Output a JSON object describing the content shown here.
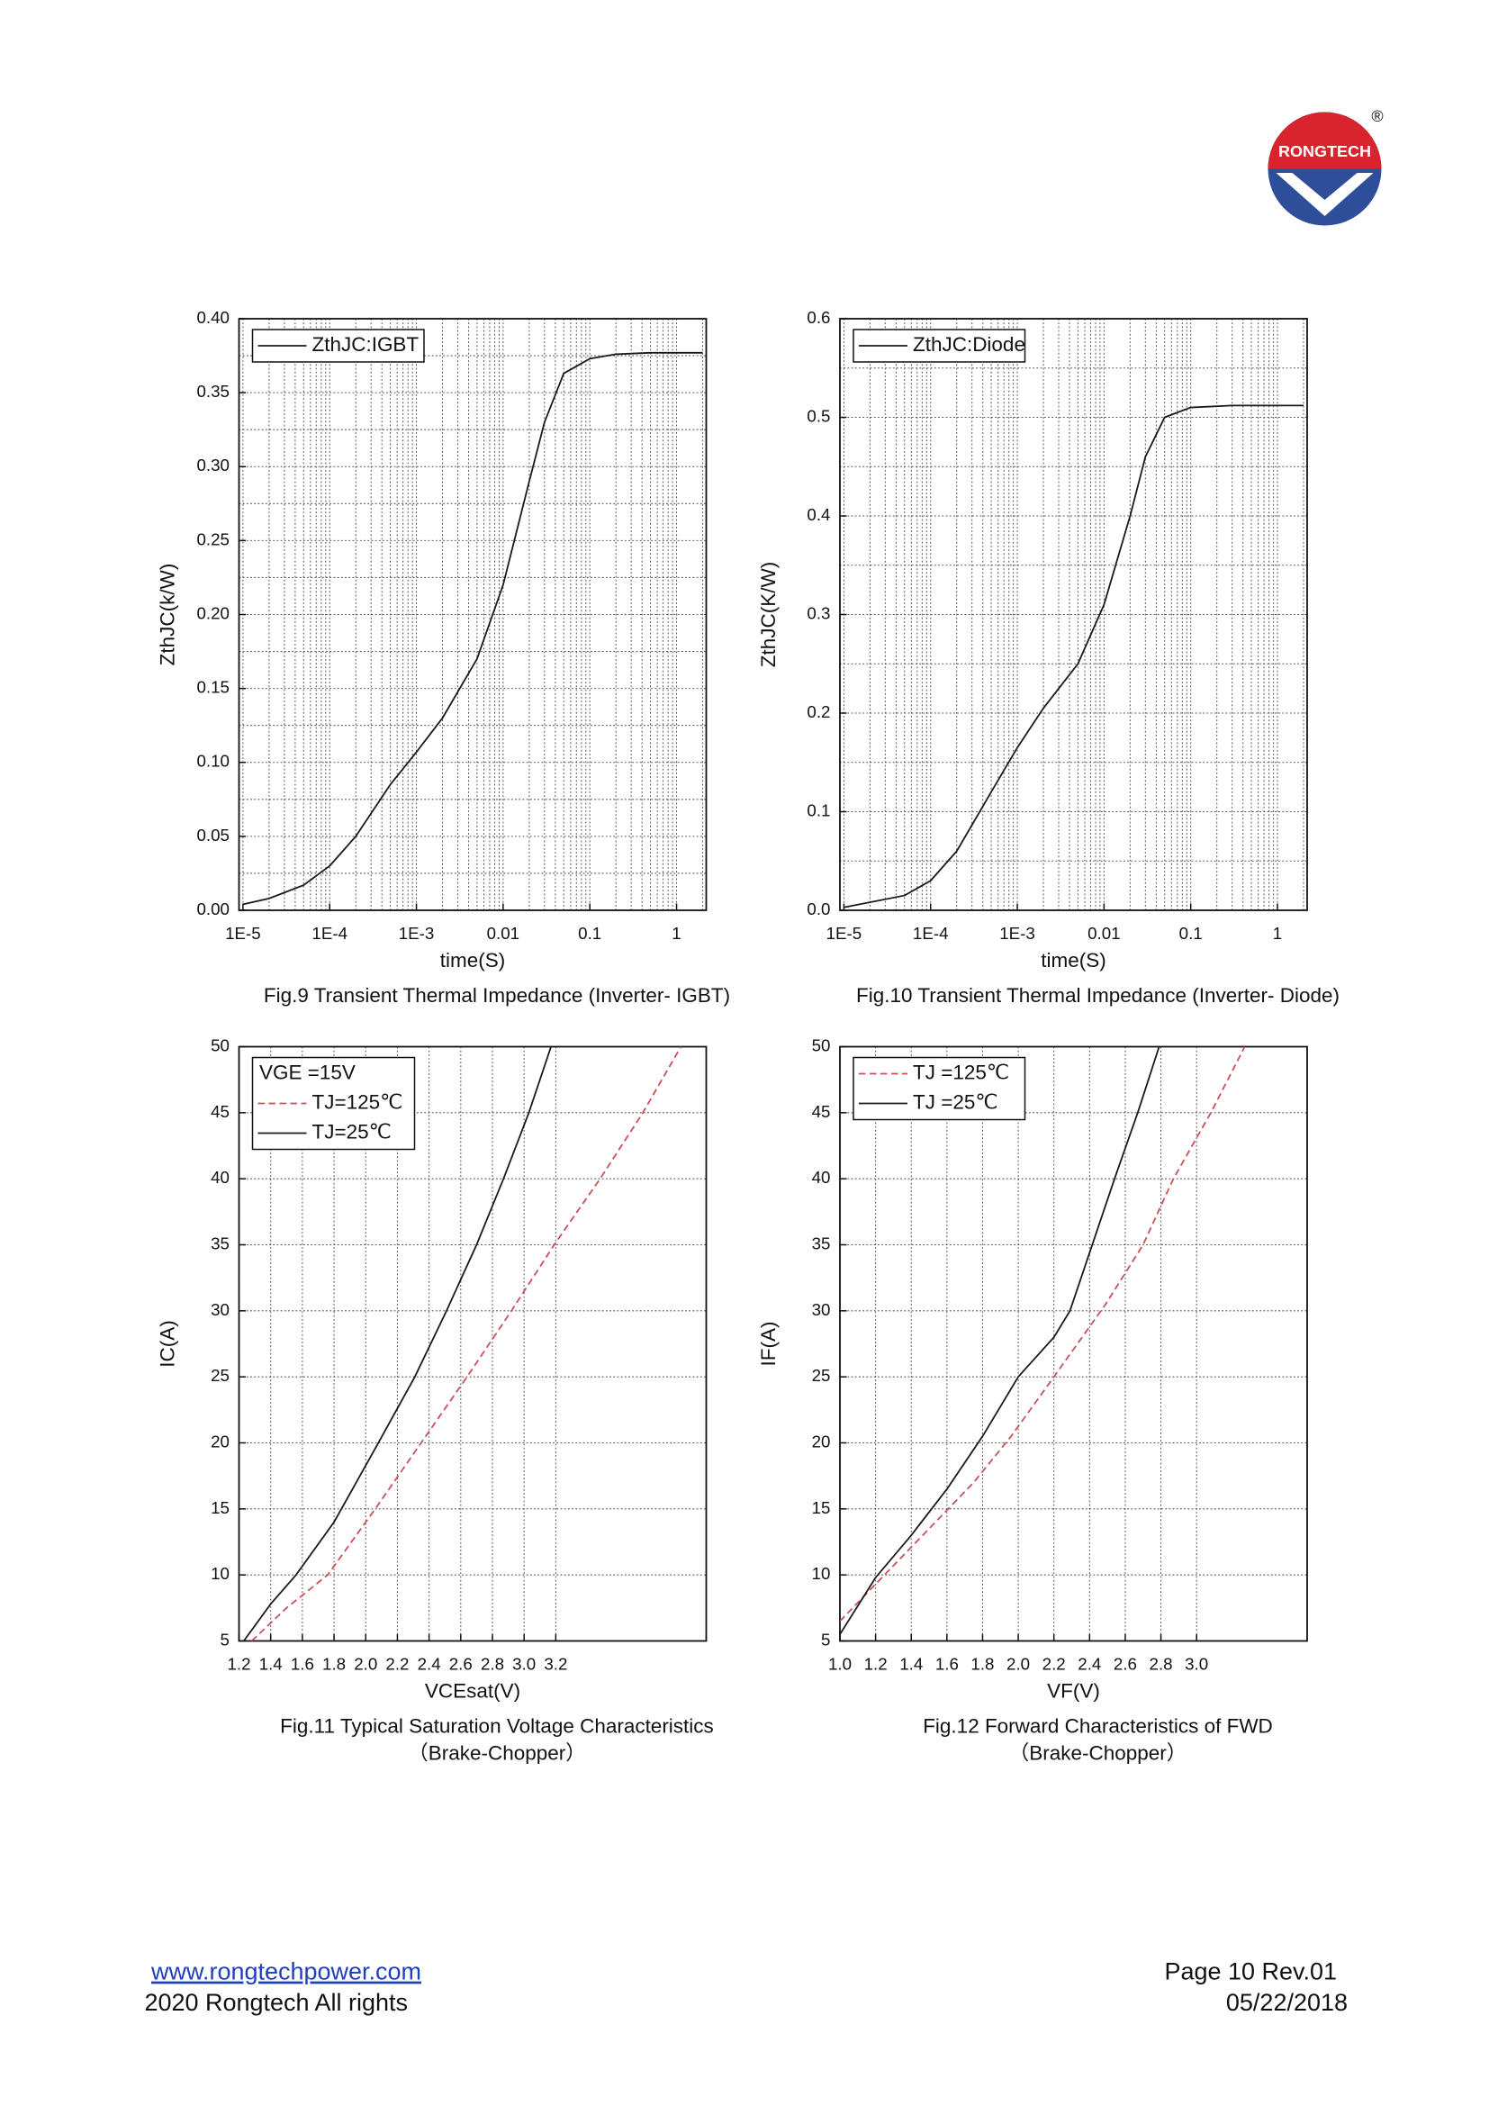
{
  "header": {
    "logo": "RONGTECH",
    "registered": "®"
  },
  "chart_data": [
    {
      "type": "line",
      "xscale": "log",
      "grid": true,
      "legend": "upper left",
      "xlabel": "time(S)",
      "ylabel": "ZthJC(k/W)",
      "caption": [
        "Fig.9 Transient Thermal Impedance (Inverter- IGBT)"
      ],
      "xlim": [
        9e-06,
        2.2
      ],
      "xticks": [
        {
          "value": 1e-05,
          "label": "1E-5"
        },
        {
          "value": 0.0001,
          "label": "1E-4"
        },
        {
          "value": 0.001,
          "label": "1E-3"
        },
        0.01,
        0.1,
        1
      ],
      "ylim": [
        0,
        0.4
      ],
      "yticks": [
        {
          "value": 0,
          "label": "0.00"
        },
        0.05,
        {
          "value": 0.1,
          "label": "0.10"
        },
        0.15,
        {
          "value": 0.2,
          "label": "0.20"
        },
        0.25,
        {
          "value": 0.3,
          "label": "0.30"
        },
        0.35,
        {
          "value": 0.4,
          "label": "0.40"
        }
      ],
      "series": [
        {
          "name": "ZthJC:IGBT",
          "color": "#1a1a1a",
          "dashed": false,
          "x": [
            1e-05,
            2e-05,
            5e-05,
            0.0001,
            0.0002,
            0.0005,
            0.001,
            0.002,
            0.005,
            0.01,
            0.02,
            0.03,
            0.05,
            0.1,
            0.2,
            0.5,
            2
          ],
          "values": [
            0.004,
            0.008,
            0.017,
            0.03,
            0.05,
            0.085,
            0.107,
            0.13,
            0.17,
            0.22,
            0.29,
            0.33,
            0.363,
            0.373,
            0.376,
            0.377,
            0.377
          ]
        }
      ]
    },
    {
      "type": "line",
      "xscale": "log",
      "grid": true,
      "legend": "upper left",
      "xlabel": "time(S)",
      "ylabel": "ZthJC(K/W)",
      "caption": [
        "Fig.10 Transient Thermal Impedance (Inverter- Diode)"
      ],
      "xlim": [
        9e-06,
        2.2
      ],
      "xticks": [
        {
          "value": 1e-05,
          "label": "1E-5"
        },
        {
          "value": 0.0001,
          "label": "1E-4"
        },
        {
          "value": 0.001,
          "label": "1E-3"
        },
        0.01,
        0.1,
        1
      ],
      "ylim": [
        0,
        0.6
      ],
      "yticks": [
        {
          "value": 0,
          "label": "0.0"
        },
        0.1,
        0.2,
        0.3,
        0.4,
        0.5,
        0.6
      ],
      "series": [
        {
          "name": "ZthJC:Diode",
          "color": "#1a1a1a",
          "dashed": false,
          "x": [
            1e-05,
            5e-05,
            0.0001,
            0.0002,
            0.0005,
            0.001,
            0.002,
            0.005,
            0.01,
            0.02,
            0.03,
            0.05,
            0.1,
            0.3,
            2
          ],
          "values": [
            0.003,
            0.015,
            0.03,
            0.06,
            0.12,
            0.165,
            0.205,
            0.25,
            0.31,
            0.4,
            0.46,
            0.5,
            0.51,
            0.512,
            0.512
          ]
        }
      ]
    },
    {
      "type": "line",
      "grid": true,
      "legend": "upper left",
      "legend_title": "VGE =15V",
      "xlabel": "VCEsat(V)",
      "ylabel": "IC(A)",
      "caption": [
        "Fig.11 Typical Saturation Voltage Characteristics",
        "（Brake-Chopper）"
      ],
      "xlim": [
        1.2,
        4.15
      ],
      "xticks": [
        1.2,
        1.4,
        1.6,
        1.8,
        {
          "value": 2,
          "label": "2.0"
        },
        2.2,
        2.4,
        2.6,
        2.8,
        {
          "value": 3,
          "label": "3.0"
        },
        3.2
      ],
      "ylim": [
        5,
        50
      ],
      "yticks": [
        5,
        10,
        15,
        20,
        25,
        30,
        35,
        40,
        45,
        50
      ],
      "series": [
        {
          "name": "TJ=125℃",
          "color": "#c8505a",
          "dashed": true,
          "x": [
            1.28,
            1.5,
            1.76,
            2.06,
            2.35,
            2.64,
            2.92,
            3.19,
            3.48,
            3.75,
            3.99
          ],
          "values": [
            5,
            7.5,
            10,
            15,
            20,
            25,
            30,
            35,
            40,
            45,
            50
          ]
        },
        {
          "name": "TJ=25℃",
          "color": "#1a1a1a",
          "dashed": false,
          "x": [
            1.23,
            1.4,
            1.56,
            1.8,
            2.08,
            2.31,
            2.51,
            2.7,
            2.87,
            3.03,
            3.17
          ],
          "values": [
            5,
            7.8,
            10,
            14,
            20,
            25,
            30,
            35,
            40,
            45,
            50
          ]
        }
      ]
    },
    {
      "type": "line",
      "grid": true,
      "legend": "upper left",
      "xlabel": "VF(V)",
      "ylabel": "IF(A)",
      "caption": [
        "Fig.12 Forward Characteristics of FWD",
        "（Brake-Chopper）"
      ],
      "xlim": [
        1,
        3.62
      ],
      "xticks": [
        {
          "value": 1,
          "label": "1.0"
        },
        1.2,
        1.4,
        1.6,
        1.8,
        {
          "value": 2,
          "label": "2.0"
        },
        2.2,
        2.4,
        2.6,
        2.8,
        {
          "value": 3,
          "label": "3.0"
        }
      ],
      "ylim": [
        5,
        50
      ],
      "yticks": [
        5,
        10,
        15,
        20,
        25,
        30,
        35,
        40,
        45,
        50
      ],
      "series": [
        {
          "name": "TJ =125℃",
          "color": "#c8505a",
          "dashed": true,
          "x": [
            1,
            1.25,
            1.5,
            1.75,
            1.96,
            2.2,
            2.49,
            2.7,
            2.87,
            3.08,
            3.27
          ],
          "values": [
            6.5,
            10,
            13.5,
            17,
            20.5,
            25,
            30.5,
            35,
            40,
            45,
            50
          ]
        },
        {
          "name": "TJ =25℃",
          "color": "#1a1a1a",
          "dashed": false,
          "x": [
            1,
            1.2,
            1.4,
            1.6,
            1.8,
            2,
            2.2,
            2.29,
            2.54,
            2.67,
            2.79
          ],
          "values": [
            5.5,
            9.8,
            13,
            16.5,
            20.5,
            25,
            28,
            30,
            40,
            45,
            50
          ]
        }
      ]
    }
  ],
  "footer": {
    "link": "www.rongtechpower.com",
    "rights": "2020 Rongtech All rights",
    "page": "Page 10 Rev.01",
    "date": "05/22/2018"
  }
}
